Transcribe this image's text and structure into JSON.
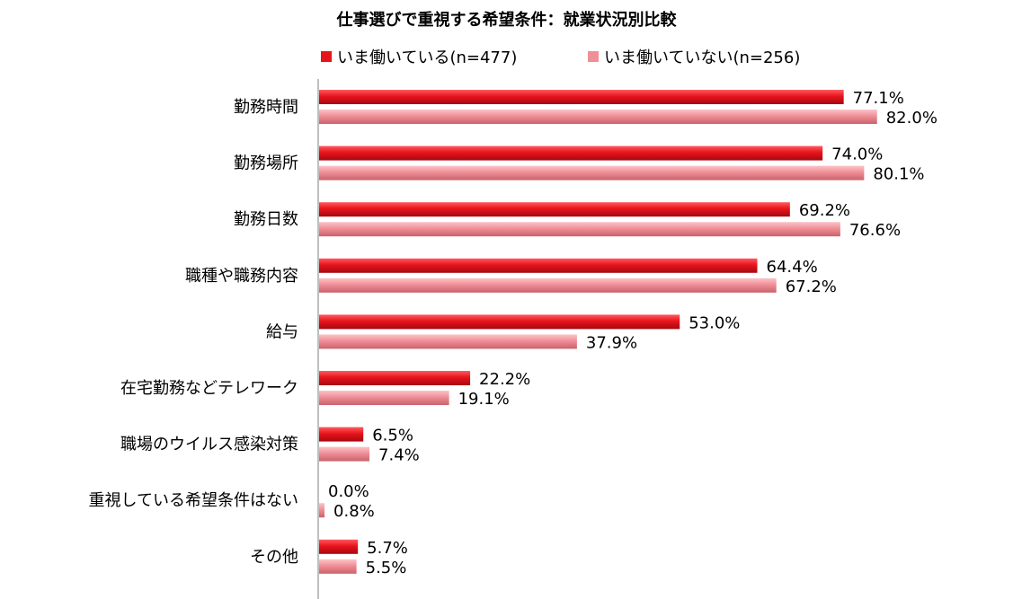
{
  "chart_data": {
    "type": "bar",
    "orientation": "horizontal",
    "title": "仕事選びで重視する希望条件：就業状況別比較",
    "categories": [
      "勤務時間",
      "勤務場所",
      "勤務日数",
      "職種や職務内容",
      "給与",
      "在宅勤務などテレワーク",
      "職場のウイルス感染対策",
      "重視している希望条件はない",
      "その他"
    ],
    "series": [
      {
        "name": "いま働いている(n=477)",
        "color": "#e8141c",
        "values": [
          77.1,
          74.0,
          69.2,
          64.4,
          53.0,
          22.2,
          6.5,
          0.0,
          5.7
        ]
      },
      {
        "name": "いま働いていない(n=256)",
        "color": "#f08f97",
        "values": [
          82.0,
          80.1,
          76.6,
          67.2,
          37.9,
          19.1,
          7.4,
          0.8,
          5.5
        ]
      }
    ],
    "value_suffix": "%",
    "xlim": [
      0,
      100
    ],
    "legend": "top",
    "grid": false
  }
}
